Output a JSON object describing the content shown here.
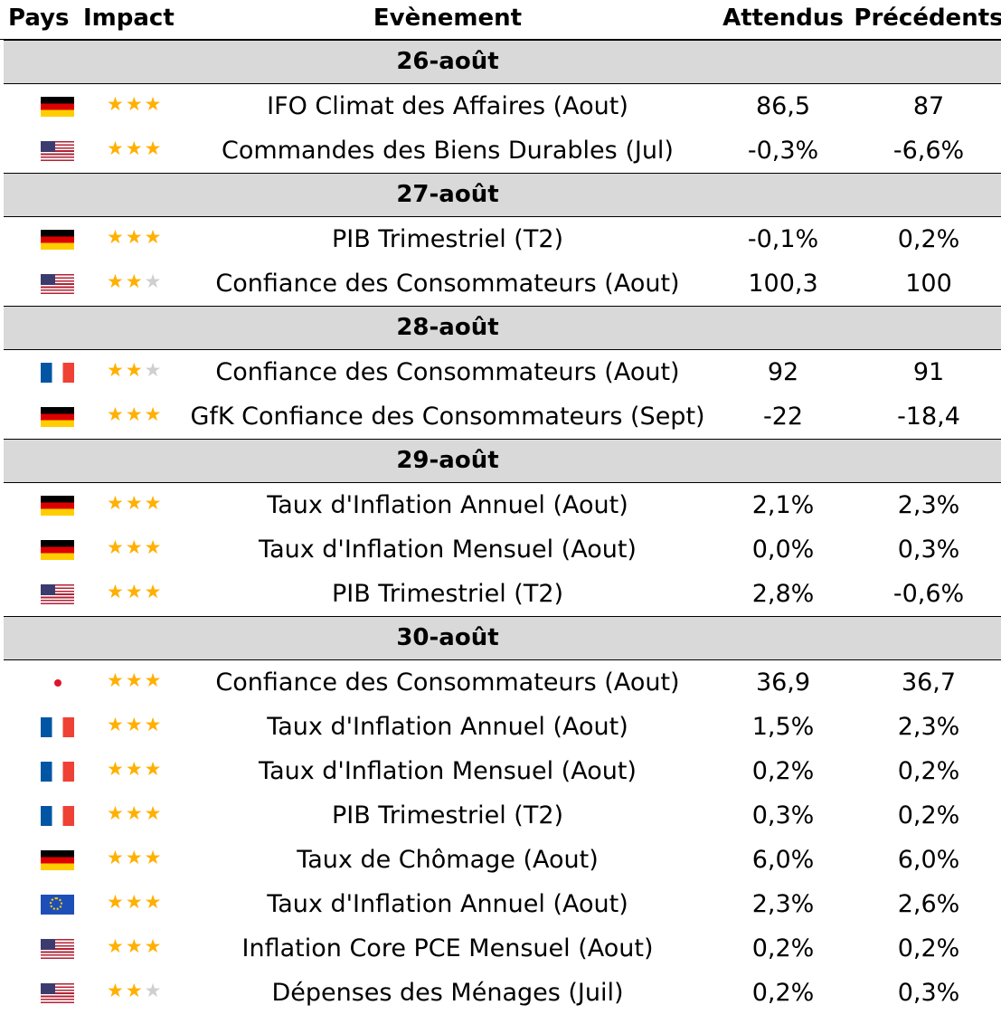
{
  "headers": {
    "country": "Pays",
    "impact": "Impact",
    "event": "Evènement",
    "expected": "Attendus",
    "previous": "Précédents"
  },
  "days": [
    {
      "date": "26-août",
      "rows": [
        {
          "flag": "germany",
          "impact": 3,
          "event": "IFO Climat des Affaires (Aout)",
          "expected": "86,5",
          "previous": "87"
        },
        {
          "flag": "united-states",
          "impact": 3,
          "event": "Commandes des Biens Durables (Jul)",
          "expected": "-0,3%",
          "previous": "-6,6%"
        }
      ]
    },
    {
      "date": "27-août",
      "rows": [
        {
          "flag": "germany",
          "impact": 3,
          "event": "PIB Trimestriel (T2)",
          "expected": "-0,1%",
          "previous": "0,2%"
        },
        {
          "flag": "united-states",
          "impact": 2,
          "event": "Confiance des Consommateurs (Aout)",
          "expected": "100,3",
          "previous": "100"
        }
      ]
    },
    {
      "date": "28-août",
      "rows": [
        {
          "flag": "france",
          "impact": 2,
          "event": "Confiance des Consommateurs (Aout)",
          "expected": "92",
          "previous": "91"
        },
        {
          "flag": "germany",
          "impact": 3,
          "event": "GfK Confiance des Consommateurs (Sept)",
          "expected": "-22",
          "previous": "-18,4"
        }
      ]
    },
    {
      "date": "29-août",
      "rows": [
        {
          "flag": "germany",
          "impact": 3,
          "event": "Taux d'Inflation Annuel (Aout)",
          "expected": "2,1%",
          "previous": "2,3%"
        },
        {
          "flag": "germany",
          "impact": 3,
          "event": "Taux d'Inflation Mensuel (Aout)",
          "expected": "0,0%",
          "previous": "0,3%"
        },
        {
          "flag": "united-states",
          "impact": 3,
          "event": "PIB Trimestriel (T2)",
          "expected": "2,8%",
          "previous": "-0,6%"
        }
      ]
    },
    {
      "date": "30-août",
      "rows": [
        {
          "flag": "japan",
          "impact": 3,
          "event": "Confiance des Consommateurs (Aout)",
          "expected": "36,9",
          "previous": "36,7"
        },
        {
          "flag": "france",
          "impact": 3,
          "event": "Taux d'Inflation Annuel (Aout)",
          "expected": "1,5%",
          "previous": "2,3%"
        },
        {
          "flag": "france",
          "impact": 3,
          "event": "Taux d'Inflation Mensuel (Aout)",
          "expected": "0,2%",
          "previous": "0,2%"
        },
        {
          "flag": "france",
          "impact": 3,
          "event": "PIB Trimestriel (T2)",
          "expected": "0,3%",
          "previous": "0,2%"
        },
        {
          "flag": "germany",
          "impact": 3,
          "event": "Taux de Chômage (Aout)",
          "expected": "6,0%",
          "previous": "6,0%"
        },
        {
          "flag": "european-union",
          "impact": 3,
          "event": "Taux d'Inflation Annuel (Aout)",
          "expected": "2,3%",
          "previous": "2,6%"
        },
        {
          "flag": "united-states",
          "impact": 3,
          "event": "Inflation Core PCE Mensuel (Aout)",
          "expected": "0,2%",
          "previous": "0,2%"
        },
        {
          "flag": "united-states",
          "impact": 2,
          "event": "Dépenses des Ménages (Juil)",
          "expected": "0,2%",
          "previous": "0,3%"
        }
      ]
    }
  ],
  "colors": {
    "star_active": "#ffb000",
    "star_inactive": "#cfcfcf",
    "day_band": "#d9d9d9"
  }
}
